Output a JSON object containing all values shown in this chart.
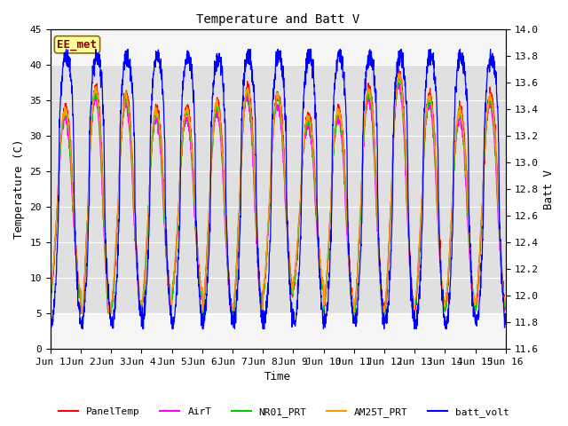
{
  "title": "Temperature and Batt V",
  "xlabel": "Time",
  "ylabel_left": "Temperature (C)",
  "ylabel_right": "Batt V",
  "ylim_left": [
    0,
    45
  ],
  "ylim_right": [
    11.6,
    14.0
  ],
  "x_tick_labels": [
    "Jun 1",
    "Jun 2",
    "Jun 3",
    "Jun 4",
    "Jun 5",
    "Jun 6",
    "Jun 7",
    "Jun 8",
    "Jun 9",
    "Jun 10",
    "Jun 11",
    "Jun 12",
    "Jun 13",
    "Jun 14",
    "Jun 15",
    "Jun 16"
  ],
  "shaded_region_lo": 5,
  "shaded_region_hi": 40,
  "annotation_text": "EE_met",
  "annotation_color": "#8B0000",
  "annotation_bg": "#FFFF99",
  "series_colors": {
    "PanelTemp": "#FF0000",
    "AirT": "#FF00FF",
    "NR01_PRT": "#00CC00",
    "AM25T_PRT": "#FF9900",
    "batt_volt": "#0000FF"
  },
  "n_days": 15,
  "samples_per_day": 144,
  "background_color": "#ffffff",
  "shaded_color": "#e0e0e0",
  "axes_bg_color": "#f5f5f5"
}
